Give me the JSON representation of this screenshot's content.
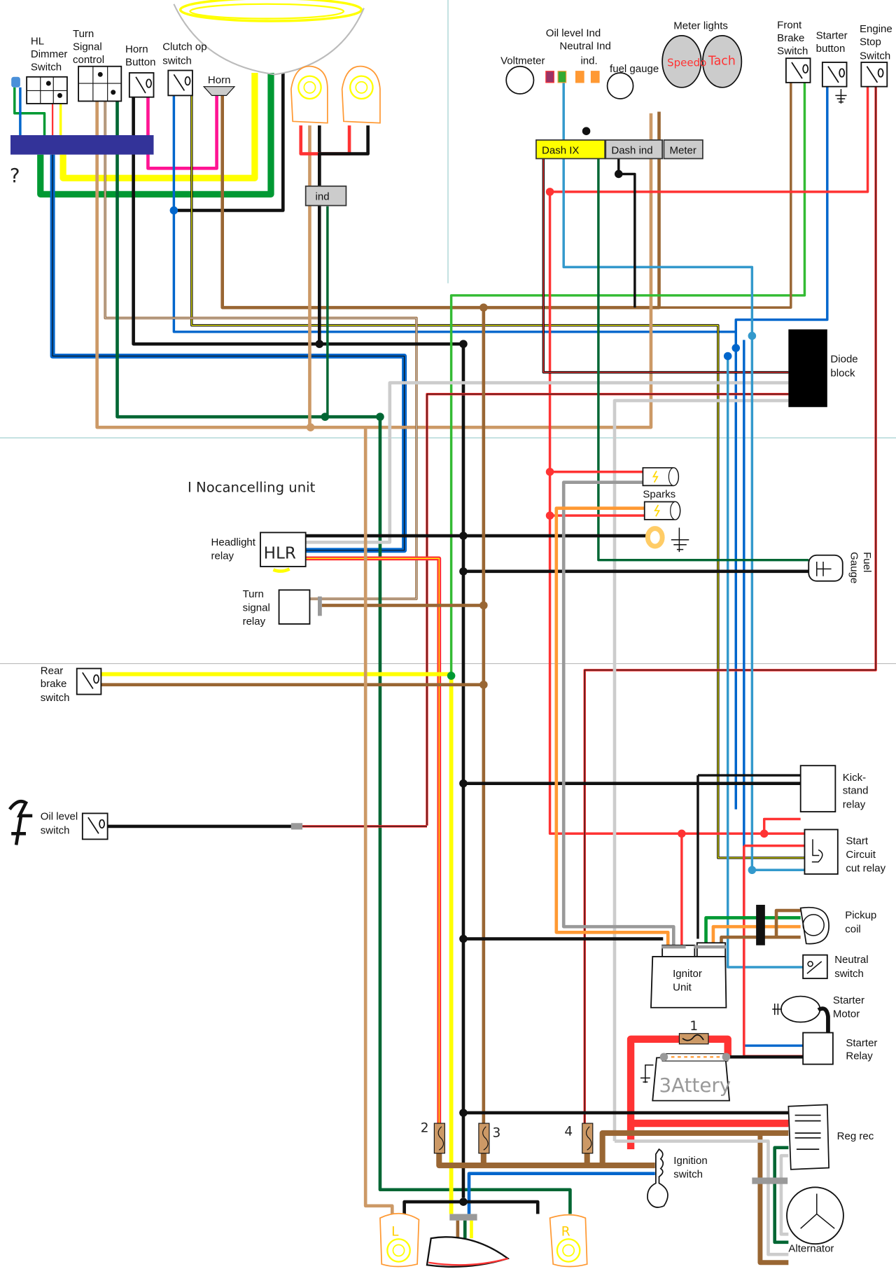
{
  "wire_colors": {
    "green": "#009933",
    "dark_green": "#006633",
    "light_green": "#33bb33",
    "yellow": "#ffff00",
    "blue": "#0066cc",
    "light_blue": "#3399cc",
    "brown": "#996633",
    "tan": "#cc9966",
    "red": "#ff3333",
    "black": "#111111",
    "pink": "#ff1493",
    "gray": "#999999",
    "light_gray": "#cccccc",
    "orange": "#ff9933",
    "harness_bar": "#333399",
    "dash_ix": "#ffff00",
    "dash_box": "#cccccc"
  },
  "labels": {
    "hl_dimmer": [
      "HL",
      "Dimmer",
      "Switch"
    ],
    "turn_signal_control": [
      "Turn",
      "Signal",
      "control"
    ],
    "horn_button": [
      "Horn",
      "Button"
    ],
    "clutch_switch": [
      "Clutch op",
      "switch"
    ],
    "horn": "Horn",
    "question": "?",
    "ind_box": "ind",
    "voltmeter": "Voltmeter",
    "oil_level_ind": "Oil level Ind",
    "neutral_ind": "Neutral Ind",
    "ind": "ind.",
    "fuel_gauge_top": "fuel gauge",
    "meter_lights": "Meter lights",
    "speedo": "Speedo",
    "tacho": "Tach",
    "dash_ix": "Dash IX",
    "dash_ind": "Dash ind",
    "meter": "Meter",
    "front_brake": [
      "Front",
      "Brake",
      "Switch"
    ],
    "starter_button": [
      "Starter",
      "button"
    ],
    "engine_stop": [
      "Engine",
      "Stop",
      "Switch"
    ],
    "diode_block": [
      "Diode",
      "block"
    ],
    "nocancelling": "I Nocancelling unit",
    "sparks": "Sparks",
    "headlight_relay": [
      "Headlight",
      "relay"
    ],
    "hlr": "HLR",
    "fuel_gauge": [
      "Fuel",
      "Gauge"
    ],
    "turn_signal_relay": [
      "Turn",
      "signal",
      "relay"
    ],
    "rear_brake": [
      "Rear",
      "brake",
      "switch"
    ],
    "oil_level_switch": [
      "Oil level",
      "switch"
    ],
    "kickstand_relay": [
      "Kick-",
      "stand",
      "relay"
    ],
    "start_cut_relay": [
      "Start",
      "Circuit",
      "cut relay"
    ],
    "pickup_coil": [
      "Pickup",
      "coil"
    ],
    "neutral_switch": [
      "Neutral",
      "switch"
    ],
    "ignitor_unit": [
      "Ignitor",
      "Unit"
    ],
    "starter_motor": [
      "Starter",
      "Motor"
    ],
    "starter_relay": [
      "Starter",
      "Relay"
    ],
    "battery": "3Attery",
    "fuse_numbers": [
      "1",
      "2",
      "3",
      "4"
    ],
    "reg_rec": "Reg rec",
    "ignition_switch": [
      "Ignition",
      "switch"
    ],
    "alternator": "Alternator",
    "turn_left": "L",
    "turn_right": "R"
  }
}
